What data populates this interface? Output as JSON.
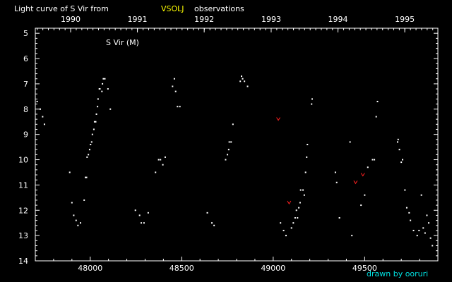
{
  "chart_data": {
    "type": "scatter",
    "title_prefix": "Light curve of S Vir from",
    "title_source": "VSOLJ",
    "title_suffix": "observations",
    "star_label": "S Vir (M)",
    "credit": "drawn by ooruri",
    "x_range": [
      47700,
      49900
    ],
    "y_range": [
      4.8,
      14.0
    ],
    "y_inverted": true,
    "x_ticks": [
      48000,
      48500,
      49000,
      49500
    ],
    "y_ticks": [
      5,
      6,
      7,
      8,
      9,
      10,
      11,
      12,
      13,
      14
    ],
    "year_ticks": [
      {
        "label": "1990",
        "jd": 47893
      },
      {
        "label": "1991",
        "jd": 48258
      },
      {
        "label": "1992",
        "jd": 48623
      },
      {
        "label": "1993",
        "jd": 48989
      },
      {
        "label": "1994",
        "jd": 49354
      },
      {
        "label": "1995",
        "jd": 49719
      }
    ],
    "colors": {
      "background": "#000000",
      "axis": "#ffffff",
      "points": "#ffffff",
      "upper_limit": "#ff2020",
      "title_source": "#ffff00",
      "credit": "#00e0e0"
    },
    "series": [
      {
        "marker": "dot",
        "points": [
          [
            47710,
            7.7
          ],
          [
            47727,
            8.0
          ],
          [
            47740,
            8.3
          ],
          [
            47750,
            8.6
          ],
          [
            47888,
            10.5
          ],
          [
            47900,
            11.7
          ],
          [
            47910,
            12.2
          ],
          [
            47923,
            12.4
          ],
          [
            47933,
            12.6
          ],
          [
            47947,
            12.5
          ],
          [
            47967,
            11.6
          ],
          [
            47974,
            10.7
          ],
          [
            47980,
            10.7
          ],
          [
            47983,
            9.9
          ],
          [
            47990,
            9.8
          ],
          [
            47997,
            9.6
          ],
          [
            48002,
            9.4
          ],
          [
            48008,
            9.3
          ],
          [
            48012,
            9.0
          ],
          [
            48020,
            8.8
          ],
          [
            48024,
            8.5
          ],
          [
            48030,
            8.5
          ],
          [
            48034,
            8.2
          ],
          [
            48040,
            7.9
          ],
          [
            48043,
            7.6
          ],
          [
            48050,
            7.2
          ],
          [
            48053,
            7.2
          ],
          [
            48064,
            7.3
          ],
          [
            48067,
            7.0
          ],
          [
            48072,
            6.8
          ],
          [
            48080,
            6.8
          ],
          [
            48097,
            7.2
          ],
          [
            48110,
            8.0
          ],
          [
            48247,
            12.0
          ],
          [
            48270,
            12.2
          ],
          [
            48279,
            12.5
          ],
          [
            48294,
            12.5
          ],
          [
            48317,
            12.1
          ],
          [
            48357,
            10.5
          ],
          [
            48374,
            10.0
          ],
          [
            48384,
            10.0
          ],
          [
            48397,
            10.2
          ],
          [
            48410,
            9.9
          ],
          [
            48450,
            7.1
          ],
          [
            48460,
            6.8
          ],
          [
            48467,
            7.3
          ],
          [
            48477,
            7.9
          ],
          [
            48490,
            7.9
          ],
          [
            48640,
            12.1
          ],
          [
            48665,
            12.5
          ],
          [
            48677,
            12.6
          ],
          [
            48740,
            10.0
          ],
          [
            48750,
            9.8
          ],
          [
            48757,
            9.6
          ],
          [
            48760,
            9.3
          ],
          [
            48770,
            9.3
          ],
          [
            48780,
            8.6
          ],
          [
            48820,
            6.9
          ],
          [
            48827,
            6.7
          ],
          [
            48833,
            6.8
          ],
          [
            48843,
            6.9
          ],
          [
            48860,
            7.1
          ],
          [
            49040,
            12.5
          ],
          [
            49057,
            12.8
          ],
          [
            49070,
            13.0
          ],
          [
            49100,
            12.7
          ],
          [
            49110,
            12.5
          ],
          [
            49120,
            12.3
          ],
          [
            49127,
            12.0
          ],
          [
            49133,
            12.3
          ],
          [
            49140,
            11.9
          ],
          [
            49147,
            11.7
          ],
          [
            49150,
            11.2
          ],
          [
            49163,
            11.2
          ],
          [
            49170,
            11.4
          ],
          [
            49177,
            10.5
          ],
          [
            49183,
            9.9
          ],
          [
            49187,
            9.4
          ],
          [
            49210,
            7.8
          ],
          [
            49213,
            7.6
          ],
          [
            49340,
            10.5
          ],
          [
            49347,
            10.9
          ],
          [
            49362,
            12.3
          ],
          [
            49420,
            9.3
          ],
          [
            49430,
            13.0
          ],
          [
            49480,
            11.8
          ],
          [
            49500,
            11.4
          ],
          [
            49517,
            10.3
          ],
          [
            49543,
            10.0
          ],
          [
            49553,
            10.0
          ],
          [
            49563,
            8.3
          ],
          [
            49570,
            7.7
          ],
          [
            49680,
            9.3
          ],
          [
            49683,
            9.2
          ],
          [
            49690,
            9.6
          ],
          [
            49700,
            10.1
          ],
          [
            49707,
            10.0
          ],
          [
            49720,
            11.2
          ],
          [
            49730,
            11.9
          ],
          [
            49743,
            12.1
          ],
          [
            49750,
            12.4
          ],
          [
            49767,
            12.8
          ],
          [
            49787,
            13.0
          ],
          [
            49797,
            12.8
          ],
          [
            49810,
            11.4
          ],
          [
            49820,
            12.7
          ],
          [
            49830,
            12.9
          ],
          [
            49840,
            12.2
          ],
          [
            49850,
            12.5
          ],
          [
            49860,
            13.1
          ],
          [
            49870,
            13.4
          ]
        ]
      },
      {
        "marker": "upper-limit",
        "points": [
          [
            49028,
            8.4
          ],
          [
            49087,
            11.7
          ],
          [
            49450,
            10.9
          ],
          [
            49490,
            10.6
          ]
        ]
      }
    ]
  }
}
